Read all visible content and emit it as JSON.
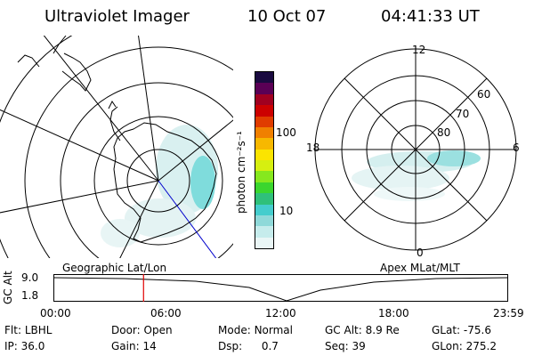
{
  "header": {
    "instrument": "Ultraviolet Imager",
    "date": "10 Oct 07",
    "time": "04:41:33 UT"
  },
  "left_panel": {
    "caption": "Geographic Lat/Lon"
  },
  "right_panel": {
    "caption": "Apex MLat/MLT",
    "mlt_labels": [
      "12",
      "18",
      "6",
      "0"
    ],
    "lat_labels": [
      "60",
      "70",
      "80"
    ]
  },
  "colorbar": {
    "unit_label": "photon cm⁻²s⁻¹",
    "ticks": [
      "100",
      "10"
    ],
    "colors": [
      "#eaf6f6",
      "#c6ecec",
      "#8fd9d9",
      "#44cdcd",
      "#2fc07a",
      "#3ad62e",
      "#86e81e",
      "#d6ef10",
      "#fbe400",
      "#f7b800",
      "#f08000",
      "#e03c00",
      "#cc0000",
      "#a00020",
      "#5a0055",
      "#1a0a40"
    ]
  },
  "timeline": {
    "y_axis_label": "GC Alt",
    "y_ticks": [
      "9.0",
      "1.8"
    ],
    "x_ticks": [
      "00:00",
      "06:00",
      "12:00",
      "18:00",
      "23:59"
    ],
    "current_time_fraction": 0.197,
    "marker_color": "#e00000"
  },
  "info": {
    "flt_label": "Flt:",
    "flt_value": "LBHL",
    "ip_label": "IP:",
    "ip_value": "36.0",
    "door_label": "Door:",
    "door_value": "Open",
    "gain_label": "Gain:",
    "gain_value": "14",
    "mode_label": "Mode:",
    "mode_value": "Normal",
    "dsp_label": "Dsp:",
    "dsp_value": "0.7",
    "gcalt_label": "GC Alt:",
    "gcalt_value": "8.9 Re",
    "seq_label": "Seq:",
    "seq_value": "39",
    "glat_label": "GLat:",
    "glat_value": "-75.6",
    "glon_label": "GLon:",
    "glon_value": "275.2"
  }
}
